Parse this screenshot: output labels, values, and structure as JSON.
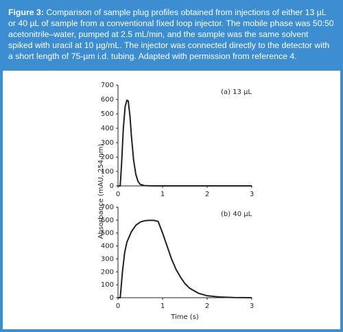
{
  "caption": {
    "label": "Figure 3:",
    "text": "Comparison of sample plug profiles obtained from injections of either 13 µL or 40 µL of sample from a conventional fixed loop injector. The mobile phase was 50:50 acetonitrile–water, pumped at 2.5 mL/min, and the sample was the same solvent spiked with uracil at 10 µg/mL. The injector was connected directly to the detector with a short length of 75-µm i.d. tubing. Adapted with permission from reference 4."
  },
  "chart_data": [
    {
      "type": "line",
      "annotation": "(a) 13 µL",
      "y_label": "Absorbance (mAU, 254 nm)",
      "color": "#231f20",
      "x": [
        0,
        0.05,
        0.08,
        0.12,
        0.16,
        0.2,
        0.23,
        0.27,
        0.3,
        0.35,
        0.4,
        0.45,
        0.5,
        0.6,
        0.8,
        1.0,
        3.0
      ],
      "values": [
        0,
        0,
        150,
        400,
        550,
        595,
        590,
        480,
        350,
        180,
        80,
        30,
        10,
        2,
        0,
        0,
        0
      ],
      "xlim": [
        0,
        3
      ],
      "ylim": [
        0,
        700
      ],
      "xticks": [
        0,
        1,
        2,
        3
      ],
      "yticks": [
        0,
        100,
        200,
        300,
        400,
        500,
        600,
        700
      ]
    },
    {
      "type": "line",
      "annotation": "(b) 40 µL",
      "x_label": "Time (s)",
      "color": "#231f20",
      "x": [
        0,
        0.05,
        0.1,
        0.15,
        0.2,
        0.3,
        0.4,
        0.5,
        0.6,
        0.7,
        0.8,
        0.9,
        1.0,
        1.1,
        1.2,
        1.3,
        1.4,
        1.5,
        1.6,
        1.8,
        2.0,
        2.3,
        2.6,
        3.0
      ],
      "values": [
        0,
        0,
        200,
        350,
        430,
        510,
        560,
        585,
        595,
        598,
        598,
        590,
        500,
        400,
        300,
        220,
        160,
        110,
        75,
        35,
        15,
        5,
        1,
        0
      ],
      "xlim": [
        0,
        3
      ],
      "ylim": [
        0,
        700
      ],
      "xticks": [
        0,
        1,
        2,
        3
      ],
      "yticks": [
        0,
        100,
        200,
        300,
        400,
        500,
        600,
        700
      ]
    }
  ]
}
